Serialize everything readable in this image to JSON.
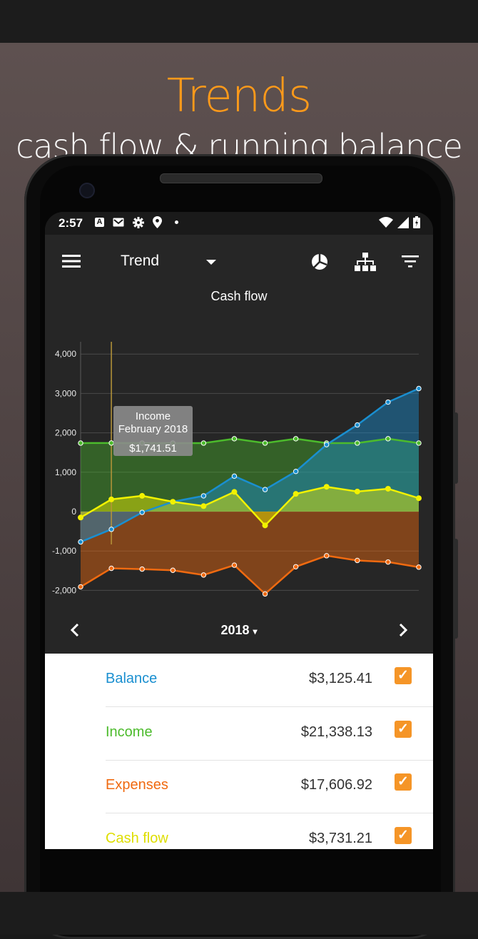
{
  "promo": {
    "headline": "Trends",
    "subline": "cash flow & running balance"
  },
  "status_bar": {
    "time": "2:57",
    "icons": [
      "a-icon",
      "gmail-icon",
      "settings-icon",
      "location-icon",
      "dot-icon"
    ],
    "right_icons": [
      "wifi-icon",
      "signal-icon",
      "battery-icon"
    ]
  },
  "toolbar": {
    "menu_icon": "menu-icon",
    "view_selector": "Trend",
    "actions": [
      "pie-chart-icon",
      "hierarchy-icon",
      "filter-icon"
    ]
  },
  "tooltip": {
    "line1": "Income",
    "line2": "February 2018",
    "value": "$1,741.51"
  },
  "navigation": {
    "period": "2018",
    "period_caret": "▾"
  },
  "colors": {
    "balance": "#1a8fd0",
    "income": "#4cbb2c",
    "expenses": "#f06a10",
    "cash_flow": "#f2f200",
    "checkbox": "#f59527"
  },
  "summary": [
    {
      "label": "Balance",
      "value": "$3,125.41",
      "checked": true
    },
    {
      "label": "Income",
      "value": "$21,338.13",
      "checked": true
    },
    {
      "label": "Expenses",
      "value": "$17,606.92",
      "checked": true
    },
    {
      "label": "Cash flow",
      "value": "$3,731.21",
      "checked": true
    }
  ],
  "chart_data": {
    "type": "line",
    "title": "Cash flow",
    "yticks": [
      "4,000",
      "3,000",
      "2,000",
      "1,000",
      "0",
      "-1,000",
      "-2,000"
    ],
    "ylim": [
      -2600,
      4800
    ],
    "grid": true,
    "highlight_index": 1,
    "series": [
      {
        "name": "Balance",
        "values": [
          -770,
          -450,
          -20,
          250,
          400,
          900,
          560,
          1020,
          1700,
          2200,
          2780,
          3125
        ]
      },
      {
        "name": "Income",
        "values": [
          1740,
          1741.51,
          1740,
          1740,
          1740,
          1850,
          1740,
          1850,
          1740,
          1740,
          1850,
          1740
        ]
      },
      {
        "name": "Expenses",
        "values": [
          -1910,
          -1440,
          -1460,
          -1490,
          -1610,
          -1360,
          -2090,
          -1400,
          -1120,
          -1240,
          -1280,
          -1410
        ]
      },
      {
        "name": "Cash flow",
        "values": [
          -150,
          310,
          400,
          250,
          140,
          500,
          -350,
          450,
          630,
          510,
          580,
          340
        ]
      }
    ]
  }
}
